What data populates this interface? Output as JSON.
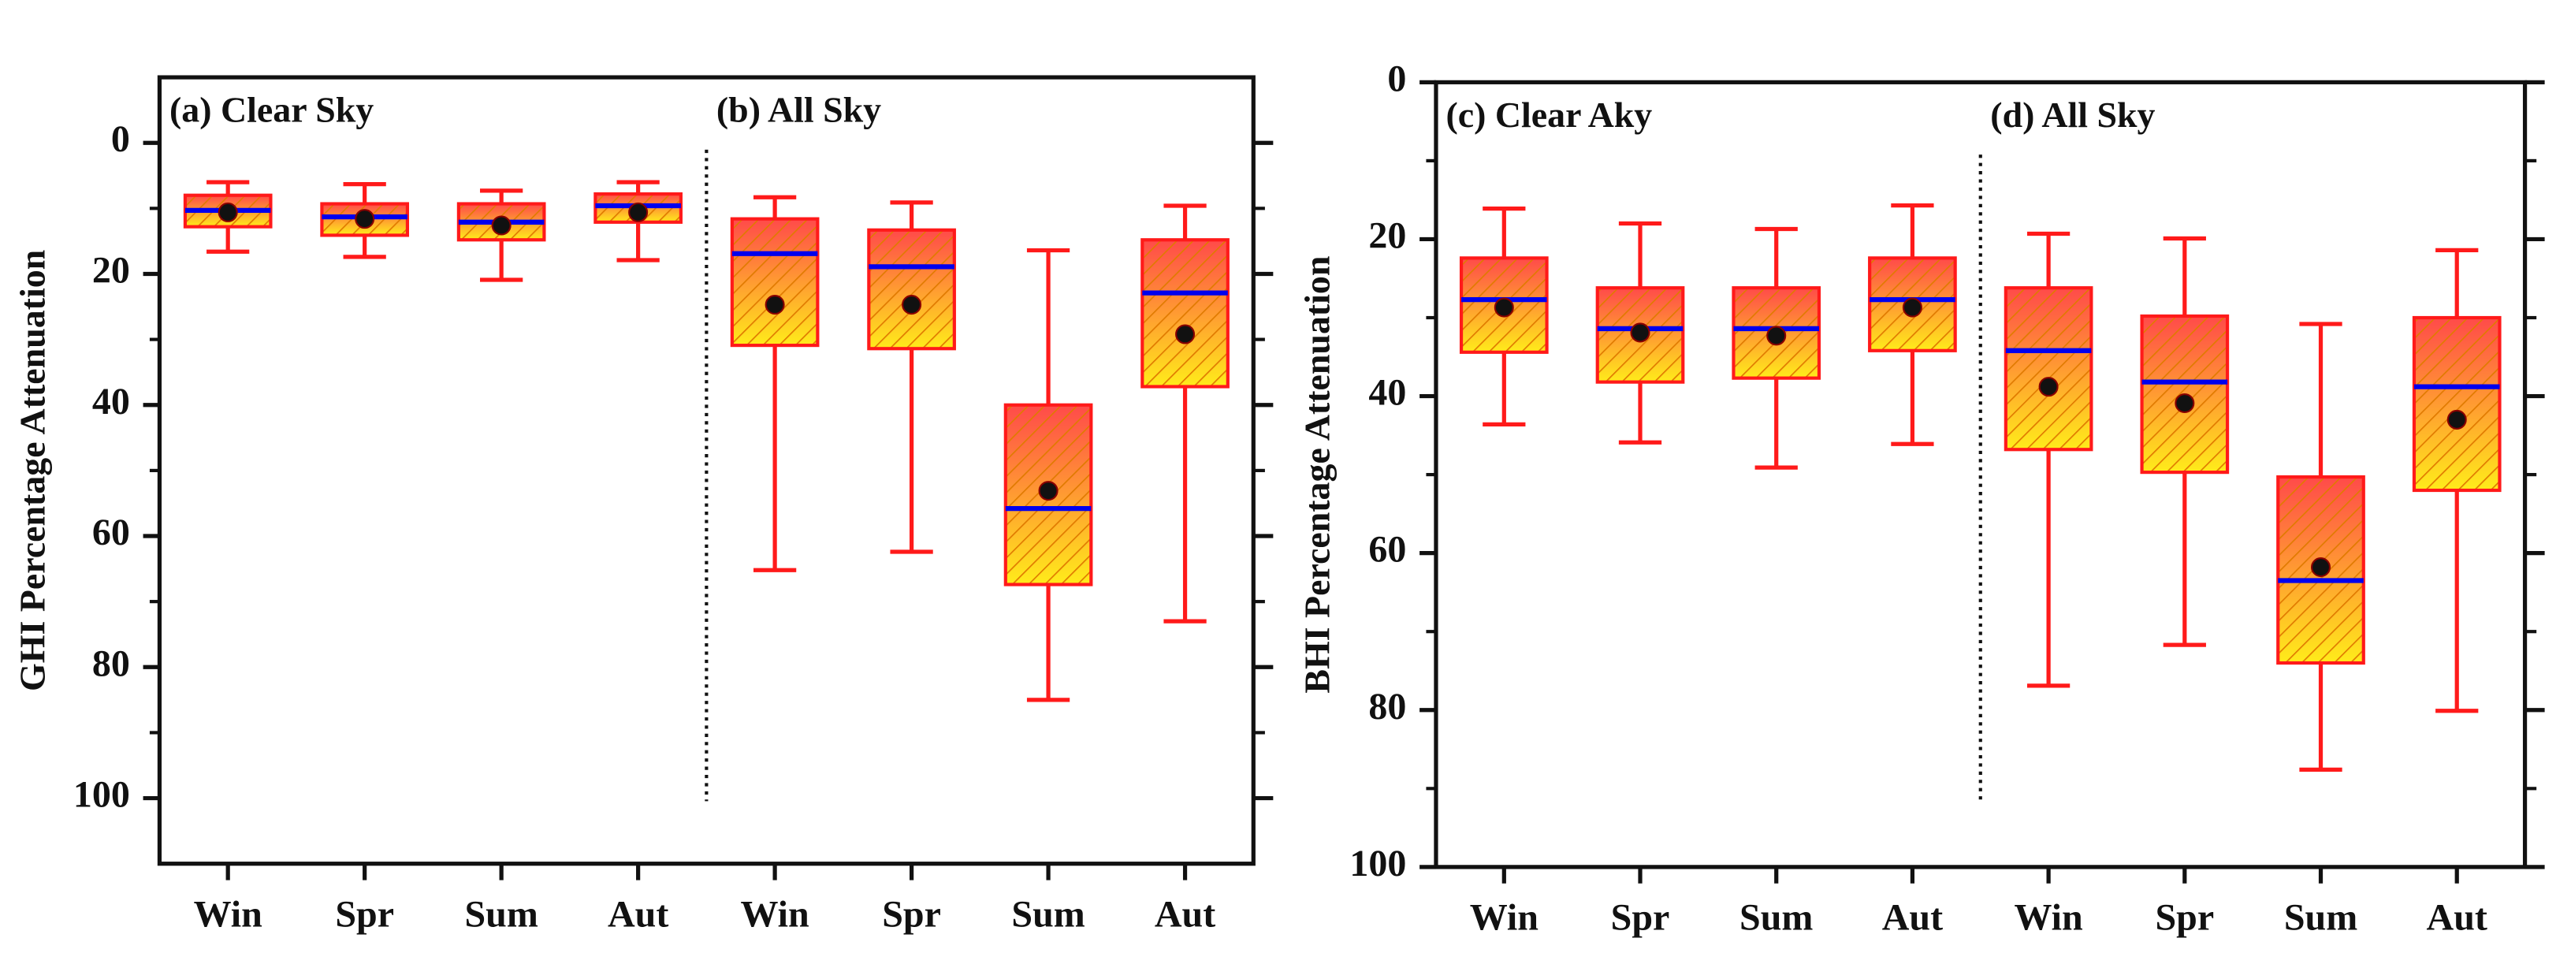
{
  "chart_data": [
    {
      "type": "box",
      "ylabel": "GHI Percentage Attenuation",
      "annotations": [
        "(a) Clear Sky",
        "(b) All Sky"
      ],
      "categories": [
        "Win",
        "Spr",
        "Sum",
        "Aut",
        "Win",
        "Spr",
        "Sum",
        "Aut"
      ],
      "min": [
        6,
        6.3,
        7.3,
        6,
        8.3,
        9.1,
        16.4,
        9.6
      ],
      "q1": [
        8,
        9.3,
        9.3,
        7.8,
        11.6,
        13.3,
        40,
        14.8
      ],
      "median": [
        10.3,
        11.3,
        12.1,
        9.6,
        16.9,
        18.9,
        55.8,
        22.9
      ],
      "q3": [
        12.8,
        14.1,
        14.8,
        12.1,
        30.9,
        31.4,
        67.4,
        37.2
      ],
      "max": [
        16.6,
        17.4,
        20.9,
        17.9,
        65.2,
        62.4,
        85,
        73
      ],
      "mean": [
        10.6,
        11.6,
        12.6,
        10.6,
        24.7,
        24.7,
        53.1,
        29.2
      ],
      "color": "#ff1a1a",
      "median_color": "#0000ee",
      "mean_color": "#111111",
      "ylim": [
        -10,
        110
      ],
      "y_inverted": true,
      "yticks": [
        0,
        20,
        40,
        60,
        80,
        100
      ],
      "yticks_minor": [
        10,
        30,
        50,
        70,
        90
      ]
    },
    {
      "type": "box",
      "ylabel": "BHI Percentage Attenuation",
      "annotations": [
        "(c) Clear Aky",
        "(d) All Sky"
      ],
      "categories": [
        "Win",
        "Spr",
        "Sum",
        "Aut",
        "Win",
        "Spr",
        "Sum",
        "Aut"
      ],
      "min": [
        16.1,
        18,
        18.7,
        15.7,
        19.3,
        19.9,
        30.8,
        21.4
      ],
      "q1": [
        22.4,
        26.2,
        26.2,
        22.4,
        26.2,
        29.8,
        50.3,
        30
      ],
      "median": [
        27.7,
        31.4,
        31.4,
        27.7,
        34.2,
        38.2,
        63.5,
        38.8
      ],
      "q3": [
        34.4,
        38.2,
        37.7,
        34.2,
        46.8,
        49.7,
        74,
        52
      ],
      "max": [
        43.6,
        45.9,
        49.1,
        46.1,
        76.9,
        71.7,
        87.6,
        80.1
      ],
      "mean": [
        28.7,
        31.9,
        32.3,
        28.7,
        38.8,
        40.9,
        61.8,
        43
      ],
      "color": "#ff1a1a",
      "median_color": "#0000ee",
      "mean_color": "#111111",
      "ylim": [
        0,
        100
      ],
      "y_inverted": true,
      "yticks": [
        0,
        20,
        40,
        60,
        80,
        100
      ],
      "yticks_minor": [
        10,
        30,
        50,
        70,
        90
      ]
    }
  ]
}
